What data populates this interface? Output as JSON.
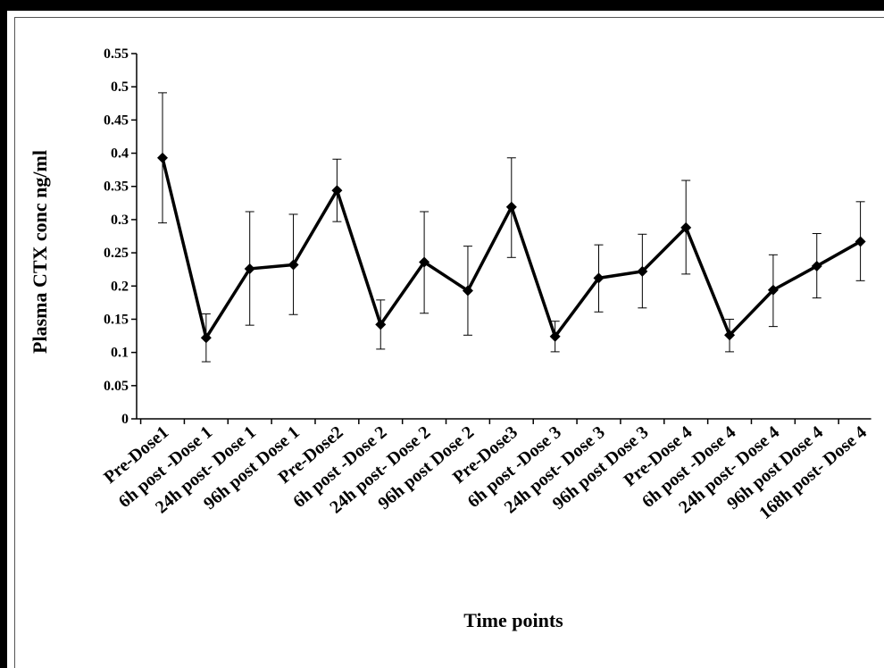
{
  "chart_data": {
    "type": "line",
    "title": "",
    "xlabel": "Time points",
    "ylabel": "Plasma CTX conc ng/ml",
    "ylim": [
      0,
      0.55
    ],
    "y_ticks": [
      "0",
      "0.05",
      "0.1",
      "0.15",
      "0.2",
      "0.25",
      "0.3",
      "0.35",
      "0.4",
      "0.45",
      "0.5",
      "0.55"
    ],
    "grid": false,
    "legend": "none",
    "categories": [
      "Pre-Dose1",
      "6h post -Dose 1",
      "24h post- Dose 1",
      "96h post Dose 1",
      "Pre-Dose2",
      "6h post -Dose 2",
      "24h post- Dose 2",
      "96h post Dose 2",
      "Pre-Dose3",
      "6h post -Dose 3",
      "24h post- Dose 3",
      "96h post Dose 3",
      "Pre-Dose 4",
      "6h post -Dose 4",
      "24h post- Dose 4",
      "96h post Dose 4",
      "168h post- Dose 4"
    ],
    "series": [
      {
        "values": [
          0.393,
          0.122,
          0.226,
          0.232,
          0.344,
          0.142,
          0.236,
          0.193,
          0.319,
          0.124,
          0.212,
          0.222,
          0.288,
          0.126,
          0.194,
          0.23,
          0.267
        ],
        "error_low": [
          0.295,
          0.086,
          0.141,
          0.157,
          0.297,
          0.105,
          0.159,
          0.126,
          0.243,
          0.101,
          0.161,
          0.167,
          0.218,
          0.101,
          0.139,
          0.182,
          0.208
        ],
        "error_high": [
          0.491,
          0.158,
          0.312,
          0.308,
          0.391,
          0.179,
          0.312,
          0.26,
          0.393,
          0.147,
          0.262,
          0.278,
          0.359,
          0.15,
          0.247,
          0.279,
          0.327
        ],
        "color": "#000000",
        "marker": "diamond"
      }
    ]
  }
}
